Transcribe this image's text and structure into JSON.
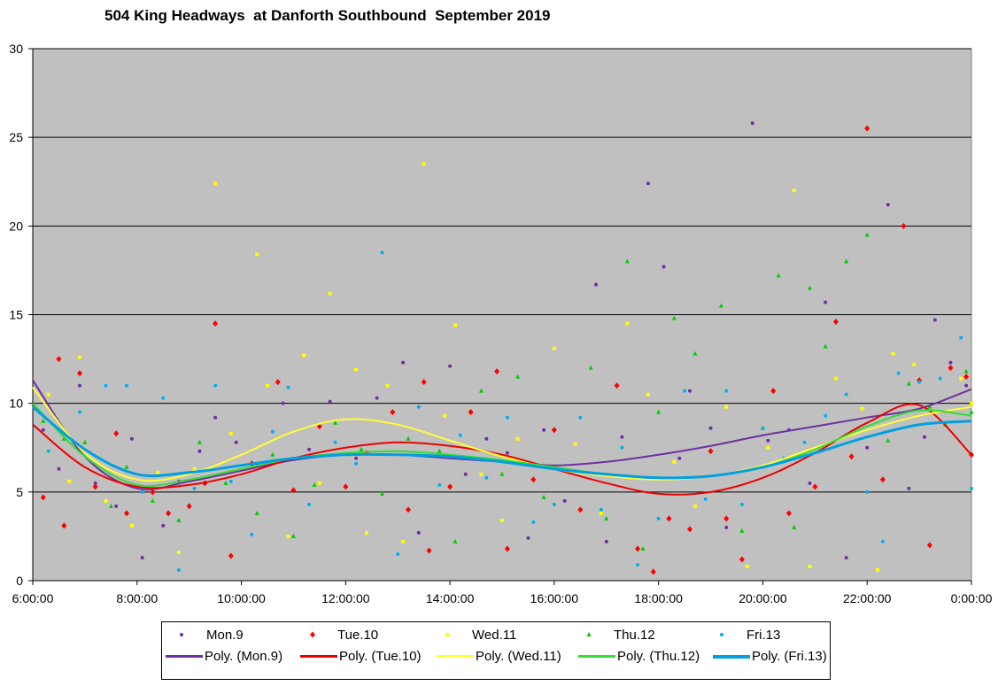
{
  "chart_data": {
    "type": "scatter",
    "title": "504 King Headways  at Danforth Southbound  September 2019",
    "xlabel": "",
    "ylabel": "",
    "xlim": [
      6,
      24
    ],
    "ylim": [
      0,
      30
    ],
    "x_tick_labels": [
      "6:00:00",
      "8:00:00",
      "10:00:00",
      "12:00:00",
      "14:00:00",
      "16:00:00",
      "18:00:00",
      "20:00:00",
      "22:00:00",
      "0:00:00"
    ],
    "x_tick_values": [
      6,
      8,
      10,
      12,
      14,
      16,
      18,
      20,
      22,
      24
    ],
    "y_tick_labels": [
      "0",
      "5",
      "10",
      "15",
      "20",
      "25",
      "30"
    ],
    "y_tick_values": [
      0,
      5,
      10,
      15,
      20,
      25,
      30
    ],
    "grid": "horizontal",
    "legend_placement": "bottom",
    "series": [
      {
        "name": "Mon.9",
        "trend_name": "Poly. (Mon.9)",
        "color": "#7030a0",
        "marker": "circle",
        "points": [
          [
            6.2,
            8.5
          ],
          [
            6.5,
            6.3
          ],
          [
            6.9,
            11.0
          ],
          [
            7.2,
            5.5
          ],
          [
            7.6,
            4.2
          ],
          [
            7.9,
            8.0
          ],
          [
            8.1,
            1.3
          ],
          [
            8.5,
            3.1
          ],
          [
            8.8,
            5.6
          ],
          [
            9.2,
            7.3
          ],
          [
            9.5,
            9.2
          ],
          [
            9.9,
            7.8
          ],
          [
            10.3,
            6.6
          ],
          [
            10.8,
            10.0
          ],
          [
            11.3,
            7.4
          ],
          [
            11.7,
            10.1
          ],
          [
            12.2,
            6.9
          ],
          [
            12.6,
            10.3
          ],
          [
            13.1,
            12.3
          ],
          [
            13.4,
            2.7
          ],
          [
            14.0,
            12.1
          ],
          [
            14.3,
            6.0
          ],
          [
            14.7,
            8.0
          ],
          [
            15.1,
            7.2
          ],
          [
            15.5,
            2.4
          ],
          [
            15.8,
            8.5
          ],
          [
            16.2,
            4.5
          ],
          [
            16.8,
            16.7
          ],
          [
            17.0,
            2.2
          ],
          [
            17.3,
            8.1
          ],
          [
            17.8,
            22.4
          ],
          [
            18.1,
            17.7
          ],
          [
            18.4,
            6.9
          ],
          [
            18.6,
            10.7
          ],
          [
            19.0,
            8.6
          ],
          [
            19.3,
            3.0
          ],
          [
            19.8,
            25.8
          ],
          [
            20.1,
            7.9
          ],
          [
            20.5,
            8.5
          ],
          [
            20.9,
            5.5
          ],
          [
            21.2,
            15.7
          ],
          [
            21.6,
            1.3
          ],
          [
            22.0,
            7.5
          ],
          [
            22.4,
            21.2
          ],
          [
            22.8,
            5.2
          ],
          [
            23.1,
            8.1
          ],
          [
            23.3,
            14.7
          ],
          [
            23.6,
            12.3
          ],
          [
            23.9,
            11.0
          ]
        ]
      },
      {
        "name": "Tue.10",
        "trend_name": "Poly. (Tue.10)",
        "color": "#ff0000",
        "marker": "diamond",
        "points": [
          [
            6.2,
            4.7
          ],
          [
            6.5,
            12.5
          ],
          [
            6.6,
            3.1
          ],
          [
            6.9,
            11.7
          ],
          [
            7.2,
            5.3
          ],
          [
            7.6,
            8.3
          ],
          [
            7.8,
            3.8
          ],
          [
            8.3,
            5.0
          ],
          [
            8.6,
            3.8
          ],
          [
            9.0,
            4.2
          ],
          [
            9.3,
            5.5
          ],
          [
            9.5,
            14.5
          ],
          [
            9.8,
            1.4
          ],
          [
            10.2,
            6.6
          ],
          [
            10.7,
            11.2
          ],
          [
            11.0,
            5.1
          ],
          [
            11.5,
            8.7
          ],
          [
            12.0,
            5.3
          ],
          [
            12.4,
            7.2
          ],
          [
            12.9,
            9.5
          ],
          [
            13.2,
            4.0
          ],
          [
            13.5,
            11.2
          ],
          [
            13.6,
            1.7
          ],
          [
            14.0,
            5.3
          ],
          [
            14.4,
            9.5
          ],
          [
            14.9,
            11.8
          ],
          [
            15.1,
            1.8
          ],
          [
            15.6,
            5.7
          ],
          [
            16.0,
            8.5
          ],
          [
            16.5,
            4.0
          ],
          [
            17.2,
            11.0
          ],
          [
            17.6,
            1.8
          ],
          [
            17.9,
            0.5
          ],
          [
            18.2,
            3.5
          ],
          [
            18.6,
            2.9
          ],
          [
            19.0,
            7.3
          ],
          [
            19.3,
            3.5
          ],
          [
            19.6,
            1.2
          ],
          [
            20.2,
            10.7
          ],
          [
            20.5,
            3.8
          ],
          [
            21.0,
            5.3
          ],
          [
            21.4,
            14.6
          ],
          [
            21.7,
            7.0
          ],
          [
            22.0,
            25.5
          ],
          [
            22.3,
            5.7
          ],
          [
            22.7,
            20.0
          ],
          [
            23.0,
            11.3
          ],
          [
            23.2,
            2.0
          ],
          [
            23.6,
            12.0
          ],
          [
            23.9,
            11.5
          ],
          [
            24.0,
            7.1
          ]
        ]
      },
      {
        "name": "Wed.11",
        "trend_name": "Poly. (Wed.11)",
        "color": "#ffff00",
        "marker": "square",
        "points": [
          [
            6.3,
            10.5
          ],
          [
            6.7,
            5.6
          ],
          [
            6.9,
            12.6
          ],
          [
            7.4,
            4.5
          ],
          [
            7.9,
            3.1
          ],
          [
            8.4,
            6.1
          ],
          [
            8.8,
            1.6
          ],
          [
            9.1,
            6.3
          ],
          [
            9.5,
            22.4
          ],
          [
            9.8,
            8.3
          ],
          [
            10.3,
            18.4
          ],
          [
            10.5,
            11.0
          ],
          [
            10.9,
            2.5
          ],
          [
            11.2,
            12.7
          ],
          [
            11.5,
            5.5
          ],
          [
            11.7,
            16.2
          ],
          [
            12.2,
            11.9
          ],
          [
            12.4,
            2.7
          ],
          [
            12.8,
            11.0
          ],
          [
            13.1,
            2.2
          ],
          [
            13.5,
            23.5
          ],
          [
            13.9,
            9.3
          ],
          [
            14.1,
            14.4
          ],
          [
            14.6,
            6.0
          ],
          [
            15.0,
            3.4
          ],
          [
            15.3,
            8.0
          ],
          [
            16.0,
            13.1
          ],
          [
            16.4,
            7.7
          ],
          [
            16.9,
            3.8
          ],
          [
            17.4,
            14.5
          ],
          [
            17.8,
            10.5
          ],
          [
            18.3,
            6.7
          ],
          [
            18.7,
            4.2
          ],
          [
            19.3,
            9.8
          ],
          [
            19.7,
            0.8
          ],
          [
            20.1,
            7.5
          ],
          [
            20.6,
            22.0
          ],
          [
            20.9,
            0.8
          ],
          [
            21.4,
            11.4
          ],
          [
            21.9,
            9.7
          ],
          [
            22.2,
            0.6
          ],
          [
            22.5,
            12.8
          ],
          [
            22.9,
            12.2
          ],
          [
            23.3,
            9.5
          ],
          [
            23.8,
            11.4
          ],
          [
            24.0,
            10.0
          ]
        ]
      },
      {
        "name": "Thu.12",
        "trend_name": "Poly. (Thu.12)",
        "color": "#00cc00",
        "marker": "triangle",
        "points": [
          [
            6.2,
            9.0
          ],
          [
            6.6,
            8.0
          ],
          [
            7.0,
            7.8
          ],
          [
            7.5,
            4.2
          ],
          [
            7.8,
            6.4
          ],
          [
            8.3,
            4.5
          ],
          [
            8.8,
            3.4
          ],
          [
            9.2,
            7.8
          ],
          [
            9.7,
            5.5
          ],
          [
            10.3,
            3.8
          ],
          [
            10.6,
            7.1
          ],
          [
            11.0,
            2.5
          ],
          [
            11.4,
            5.4
          ],
          [
            11.8,
            8.9
          ],
          [
            12.3,
            7.4
          ],
          [
            12.7,
            4.9
          ],
          [
            13.2,
            8.0
          ],
          [
            13.8,
            7.3
          ],
          [
            14.1,
            2.2
          ],
          [
            14.6,
            10.7
          ],
          [
            15.0,
            6.0
          ],
          [
            15.3,
            11.5
          ],
          [
            15.8,
            4.7
          ],
          [
            16.3,
            6.1
          ],
          [
            16.7,
            12.0
          ],
          [
            17.0,
            3.5
          ],
          [
            17.4,
            18.0
          ],
          [
            17.7,
            1.8
          ],
          [
            18.0,
            9.5
          ],
          [
            18.3,
            14.8
          ],
          [
            18.7,
            12.8
          ],
          [
            19.2,
            15.5
          ],
          [
            19.6,
            2.8
          ],
          [
            20.0,
            8.6
          ],
          [
            20.3,
            17.2
          ],
          [
            20.6,
            3.0
          ],
          [
            20.9,
            16.5
          ],
          [
            21.2,
            13.2
          ],
          [
            21.6,
            18.0
          ],
          [
            22.0,
            19.5
          ],
          [
            22.4,
            7.9
          ],
          [
            22.8,
            11.1
          ],
          [
            23.2,
            9.8
          ],
          [
            23.5,
            8.8
          ],
          [
            23.9,
            11.8
          ],
          [
            24.0,
            9.5
          ]
        ]
      },
      {
        "name": "Fri.13",
        "trend_name": "Poly. (Fri.13)",
        "color": "#00b0f0",
        "marker": "circle",
        "points": [
          [
            6.3,
            7.3
          ],
          [
            6.9,
            9.5
          ],
          [
            7.4,
            11.0
          ],
          [
            7.8,
            11.0
          ],
          [
            8.1,
            5.0
          ],
          [
            8.5,
            10.3
          ],
          [
            8.8,
            0.6
          ],
          [
            9.1,
            5.2
          ],
          [
            9.5,
            11.0
          ],
          [
            9.8,
            5.6
          ],
          [
            10.2,
            2.6
          ],
          [
            10.6,
            8.4
          ],
          [
            10.9,
            10.9
          ],
          [
            11.3,
            4.3
          ],
          [
            11.8,
            7.8
          ],
          [
            12.2,
            6.6
          ],
          [
            12.7,
            18.5
          ],
          [
            13.0,
            1.5
          ],
          [
            13.4,
            9.8
          ],
          [
            13.8,
            5.4
          ],
          [
            14.2,
            8.2
          ],
          [
            14.7,
            5.8
          ],
          [
            15.1,
            9.2
          ],
          [
            15.6,
            3.3
          ],
          [
            16.0,
            4.3
          ],
          [
            16.5,
            9.2
          ],
          [
            16.9,
            4.0
          ],
          [
            17.3,
            7.5
          ],
          [
            17.6,
            0.9
          ],
          [
            18.0,
            3.5
          ],
          [
            18.5,
            10.7
          ],
          [
            18.9,
            4.6
          ],
          [
            19.3,
            10.7
          ],
          [
            19.6,
            4.3
          ],
          [
            20.0,
            8.6
          ],
          [
            20.4,
            6.9
          ],
          [
            20.8,
            7.8
          ],
          [
            21.2,
            9.3
          ],
          [
            21.6,
            10.5
          ],
          [
            22.0,
            5.0
          ],
          [
            22.3,
            2.2
          ],
          [
            22.6,
            11.7
          ],
          [
            23.0,
            11.2
          ],
          [
            23.4,
            11.4
          ],
          [
            23.8,
            13.7
          ],
          [
            24.0,
            5.2
          ]
        ]
      }
    ],
    "trendlines": {
      "hours": [
        6,
        7,
        8,
        9,
        10,
        11,
        12,
        13,
        14,
        15,
        16,
        17,
        18,
        19,
        20,
        21,
        22,
        23,
        24
      ],
      "Mon.9": [
        11.3,
        7.0,
        5.2,
        5.6,
        6.2,
        6.8,
        7.1,
        7.1,
        6.9,
        6.7,
        6.5,
        6.7,
        7.1,
        7.6,
        8.2,
        8.7,
        9.2,
        9.7,
        10.8
      ],
      "Tue.10": [
        8.8,
        6.4,
        5.3,
        5.4,
        6.0,
        6.9,
        7.5,
        7.8,
        7.6,
        7.1,
        6.3,
        5.5,
        4.9,
        5.0,
        5.8,
        7.2,
        8.9,
        9.9,
        7.1
      ],
      "Wed.11": [
        10.9,
        7.2,
        5.7,
        6.0,
        7.1,
        8.4,
        9.1,
        8.8,
        7.9,
        7.0,
        6.3,
        5.9,
        5.7,
        5.9,
        6.5,
        7.5,
        8.5,
        9.3,
        9.8
      ],
      "Thu.12": [
        10.0,
        7.0,
        5.4,
        5.7,
        6.3,
        6.9,
        7.2,
        7.3,
        7.1,
        6.8,
        6.4,
        6.0,
        5.8,
        5.9,
        6.4,
        7.4,
        8.7,
        9.6,
        9.3
      ],
      "Fri.13": [
        9.8,
        7.4,
        6.0,
        6.1,
        6.5,
        6.9,
        7.1,
        7.1,
        7.0,
        6.7,
        6.3,
        6.0,
        5.8,
        5.9,
        6.4,
        7.2,
        8.1,
        8.8,
        9.0
      ]
    },
    "trend_colors": {
      "Mon.9": "#7030a0",
      "Tue.10": "#ee0000",
      "Wed.11": "#ffff33",
      "Thu.12": "#33dd33",
      "Fri.13": "#00a0e0"
    }
  }
}
